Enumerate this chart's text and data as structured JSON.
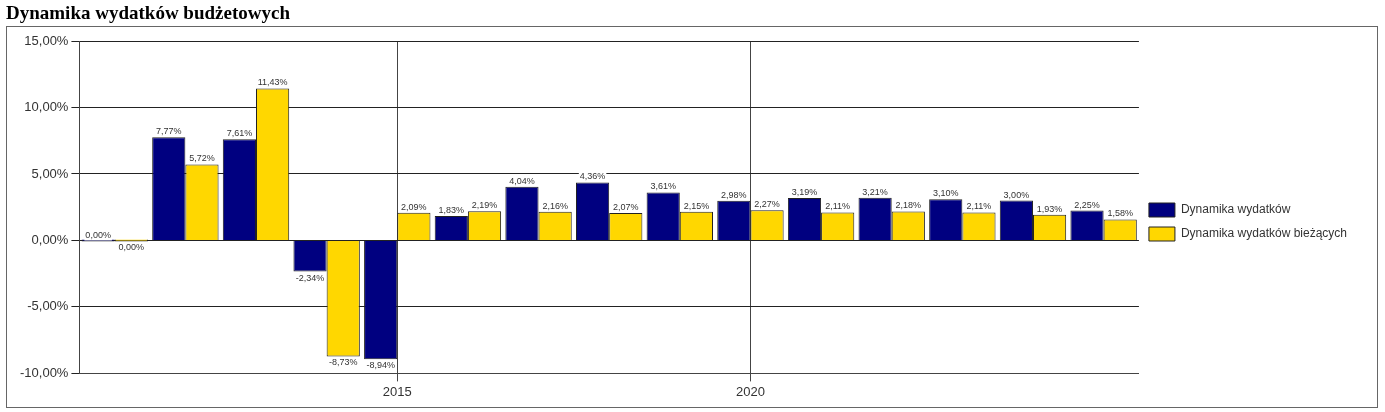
{
  "chart_data": {
    "type": "bar",
    "title": "Dynamika wydatków budżetowych",
    "categories": [
      null,
      null,
      null,
      null,
      "2015",
      null,
      null,
      null,
      null,
      "2020",
      null,
      null,
      null,
      null,
      null
    ],
    "series": [
      {
        "name": "Dynamika wydatków",
        "color": "#000080",
        "values": [
          0,
          7.77,
          7.61,
          -2.34,
          -8.94,
          1.83,
          4.04,
          4.36,
          3.61,
          2.98,
          3.19,
          3.21,
          3.1,
          3.0,
          2.25
        ],
        "value_labels": [
          "0,00%",
          "7,77%",
          "7,61%",
          "-2,34%",
          "-8,94%",
          "1,83%",
          "4,04%",
          "4,36%",
          "3,61%",
          "2,98%",
          "3,19%",
          "3,21%",
          "3,10%",
          "3,00%",
          "2,25%"
        ]
      },
      {
        "name": "Dynamika wydatków bieżących",
        "color": "#ffd700",
        "values": [
          0,
          5.72,
          11.43,
          -8.73,
          2.09,
          2.19,
          2.16,
          2.07,
          2.15,
          2.27,
          2.11,
          2.18,
          2.11,
          1.93,
          1.58
        ],
        "value_labels": [
          "0,00%",
          "5,72%",
          "11,43%",
          "-8,73%",
          "2,09%",
          "2,19%",
          "2,16%",
          "2,07%",
          "2,15%",
          "2,27%",
          "2,11%",
          "2,18%",
          "2,11%",
          "1,93%",
          "1,58%"
        ]
      }
    ],
    "ylim": [
      -10,
      15
    ],
    "yticks": [
      {
        "value": -10,
        "label": "-10,00%"
      },
      {
        "value": -5,
        "label": "-5,00%"
      },
      {
        "value": 0,
        "label": "0,00%"
      },
      {
        "value": 5,
        "label": "5,00%"
      },
      {
        "value": 10,
        "label": "10,00%"
      },
      {
        "value": 15,
        "label": "15,00%"
      }
    ],
    "grid": true,
    "legend": "right"
  }
}
